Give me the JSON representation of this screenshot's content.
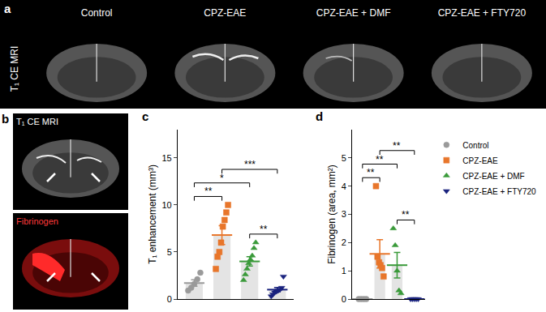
{
  "panels": {
    "a": {
      "letter": "a",
      "row_label": "T₁ CE MRI",
      "columns": [
        "Control",
        "CPZ-EAE",
        "CPZ-EAE + DMF",
        "CPZ-EAE + FTY720"
      ]
    },
    "b": {
      "letter": "b",
      "images": [
        "T₁ CE MRI",
        "Fibrinogen"
      ]
    }
  },
  "chart_data": [
    {
      "type": "bar",
      "panel": "c",
      "y_label": "T₁ enhancement (mm³)",
      "ylim": [
        0,
        18
      ],
      "yticks": [
        0,
        5,
        10,
        15
      ],
      "grid": false,
      "tick_labels": "y",
      "series": [
        {
          "name": "Control",
          "color": "#9a9a9a",
          "marker": "circle",
          "values": [
            0.9,
            1.2,
            1.6,
            2.1,
            2.8
          ],
          "mean": 1.7,
          "sem": 0.35
        },
        {
          "name": "CPZ-EAE",
          "color": "#e8762b",
          "marker": "square",
          "values": [
            3.2,
            4.5,
            5.0,
            6.0,
            7.7,
            8.4,
            9.2,
            10.0
          ],
          "mean": 6.8,
          "sem": 1.0
        },
        {
          "name": "CPZ-EAE + DMF",
          "color": "#3a9a3a",
          "marker": "triangle-up",
          "values": [
            2.0,
            2.6,
            3.2,
            3.8,
            4.2,
            4.6,
            5.4,
            6.0
          ],
          "mean": 4.0,
          "sem": 0.5
        },
        {
          "name": "CPZ-EAE + FTY720",
          "color": "#1a237e",
          "marker": "triangle-down",
          "values": [
            0.3,
            0.5,
            0.7,
            0.8,
            0.9,
            1.0,
            1.2,
            2.4
          ],
          "mean": 1.0,
          "sem": 0.23
        }
      ],
      "comparisons": [
        {
          "from": "Control",
          "to": "CPZ-EAE",
          "label": "**"
        },
        {
          "from": "Control",
          "to": "CPZ-EAE + DMF",
          "label": "*"
        },
        {
          "from": "CPZ-EAE",
          "to": "CPZ-EAE + FTY720",
          "label": "***"
        },
        {
          "from": "CPZ-EAE + DMF",
          "to": "CPZ-EAE + FTY720",
          "label": "**"
        }
      ]
    },
    {
      "type": "bar",
      "panel": "d",
      "y_label": "Fibrinogen (area, mm²)",
      "ylim": [
        0,
        6
      ],
      "yticks": [
        0,
        1,
        2,
        3,
        4,
        5
      ],
      "grid": false,
      "tick_labels": "y",
      "legend": "right",
      "series": [
        {
          "name": "Control",
          "color": "#9a9a9a",
          "marker": "circle",
          "values": [
            0,
            0,
            0,
            0
          ],
          "mean": 0,
          "sem": 0
        },
        {
          "name": "CPZ-EAE",
          "color": "#e8762b",
          "marker": "square",
          "values": [
            4.0,
            1.5,
            1.3,
            1.2,
            1.1,
            0.8
          ],
          "mean": 1.6,
          "sem": 0.5
        },
        {
          "name": "CPZ-EAE + DMF",
          "color": "#3a9a3a",
          "marker": "triangle-up",
          "values": [
            2.5,
            1.9,
            1.0,
            0.3,
            0.2
          ],
          "mean": 1.2,
          "sem": 0.45
        },
        {
          "name": "CPZ-EAE + FTY720",
          "color": "#1a237e",
          "marker": "triangle-down",
          "values": [
            0,
            0,
            0,
            0,
            0
          ],
          "mean": 0,
          "sem": 0
        }
      ],
      "comparisons": [
        {
          "from": "Control",
          "to": "CPZ-EAE",
          "label": "**"
        },
        {
          "from": "Control",
          "to": "CPZ-EAE + DMF",
          "label": "**"
        },
        {
          "from": "CPZ-EAE",
          "to": "CPZ-EAE + FTY720",
          "label": "**"
        },
        {
          "from": "CPZ-EAE + DMF",
          "to": "CPZ-EAE + FTY720",
          "label": "**"
        }
      ]
    }
  ]
}
